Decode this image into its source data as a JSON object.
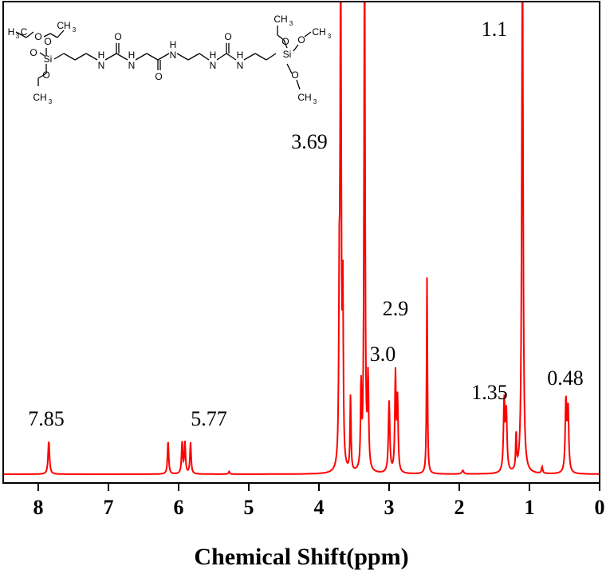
{
  "chart_data": {
    "type": "line",
    "xlabel": "Chemical Shift(ppm)",
    "ylabel": "",
    "xlim": [
      8.5,
      0
    ],
    "x_ticks": [
      "8",
      "7",
      "6",
      "5",
      "4",
      "3",
      "2",
      "1",
      "0"
    ],
    "x_tick_values": [
      8,
      7,
      6,
      5,
      4,
      3,
      2,
      1,
      0
    ],
    "series_color": "#ff0000",
    "peaks": [
      {
        "x": 7.85,
        "h": 0.075,
        "w": 0.012
      },
      {
        "x": 6.15,
        "h": 0.075,
        "w": 0.01
      },
      {
        "x": 5.95,
        "h": 0.07,
        "w": 0.01
      },
      {
        "x": 5.91,
        "h": 0.07,
        "w": 0.01
      },
      {
        "x": 5.83,
        "h": 0.07,
        "w": 0.01
      },
      {
        "x": 5.28,
        "h": 0.006,
        "w": 0.01
      },
      {
        "x": 3.71,
        "h": 0.35,
        "w": 0.008
      },
      {
        "x": 3.69,
        "h": 1.2,
        "w": 0.009
      },
      {
        "x": 3.66,
        "h": 0.38,
        "w": 0.008
      },
      {
        "x": 3.55,
        "h": 0.17,
        "w": 0.008
      },
      {
        "x": 3.4,
        "h": 0.19,
        "w": 0.008
      },
      {
        "x": 3.35,
        "h": 1.2,
        "w": 0.009
      },
      {
        "x": 3.3,
        "h": 0.2,
        "w": 0.01
      },
      {
        "x": 3.0,
        "h": 0.16,
        "w": 0.012
      },
      {
        "x": 2.91,
        "h": 0.22,
        "w": 0.01
      },
      {
        "x": 2.88,
        "h": 0.16,
        "w": 0.01
      },
      {
        "x": 2.46,
        "h": 0.44,
        "w": 0.007
      },
      {
        "x": 1.95,
        "h": 0.008,
        "w": 0.015
      },
      {
        "x": 1.36,
        "h": 0.16,
        "w": 0.012
      },
      {
        "x": 1.33,
        "h": 0.13,
        "w": 0.012
      },
      {
        "x": 1.19,
        "h": 0.085,
        "w": 0.007
      },
      {
        "x": 1.1,
        "h": 1.2,
        "w": 0.011
      },
      {
        "x": 0.82,
        "h": 0.015,
        "w": 0.01
      },
      {
        "x": 0.48,
        "h": 0.16,
        "w": 0.012
      },
      {
        "x": 0.45,
        "h": 0.14,
        "w": 0.012
      }
    ],
    "annotations": [
      {
        "text": "7.85",
        "x": 7.85
      },
      {
        "text": "5.77",
        "x": 5.77
      },
      {
        "text": "3.69",
        "x": 3.69
      },
      {
        "text": "3.0",
        "x": 3.0
      },
      {
        "text": "2.9",
        "x": 2.9
      },
      {
        "text": "1.35",
        "x": 1.35
      },
      {
        "text": "1.1",
        "x": 1.1
      },
      {
        "text": "0.48",
        "x": 0.48
      }
    ],
    "grid": false,
    "legend": "none"
  },
  "structure": {
    "labels": {
      "ch3": "CH",
      "sub3": "3",
      "h3c_h": "H",
      "h3c_c": "C",
      "o": "O",
      "si": "Si",
      "nh_h": "H",
      "nh_n": "N"
    }
  }
}
